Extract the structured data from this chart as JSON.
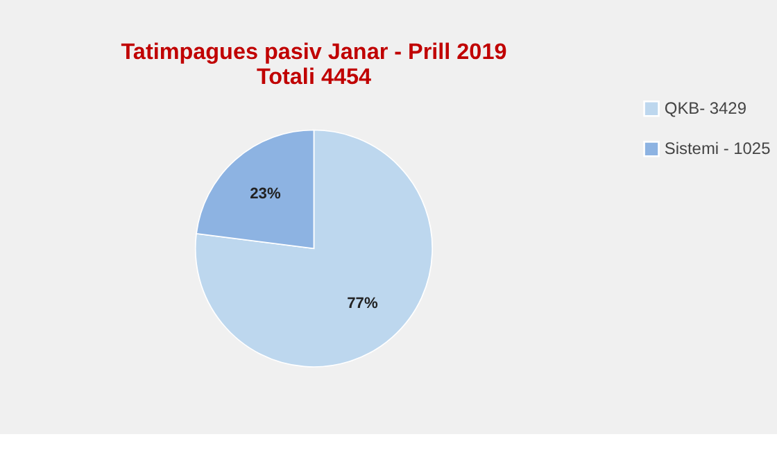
{
  "chart_data": {
    "type": "pie",
    "title": [
      "Tatimpagues pasiv Janar - Prill 2019",
      "Totali 4454"
    ],
    "categories": [
      "QKB- 3429",
      "Sistemi - 1025"
    ],
    "values": [
      77,
      23
    ],
    "colors": [
      "#bdd7ee",
      "#8db3e2"
    ],
    "value_labels": [
      "77%",
      "23%"
    ],
    "legend": "right"
  }
}
